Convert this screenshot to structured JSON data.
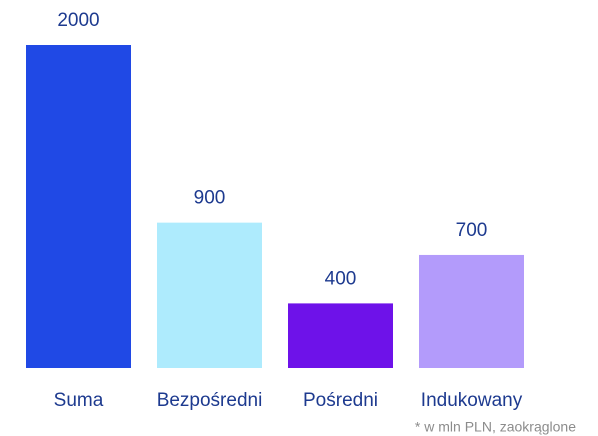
{
  "chart_data": {
    "type": "bar",
    "categories": [
      "Suma",
      "Bezpośredni",
      "Pośredni",
      "Indukowany"
    ],
    "values": [
      2000,
      900,
      400,
      700
    ],
    "colors": [
      "#2049e5",
      "#aeebfd",
      "#6e12e9",
      "#b39bfb"
    ],
    "footnote": "* w mln PLN, zaokrąglone"
  }
}
